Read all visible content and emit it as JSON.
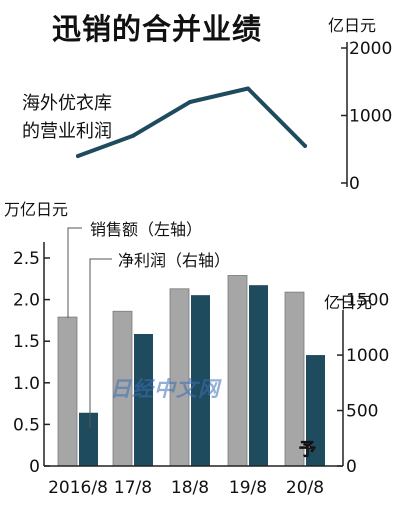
{
  "title": "迅销的合并业绩",
  "watermark": "日经中文网",
  "colors": {
    "sales": "#a6a6a6",
    "profit": "#1e4b5e",
    "line": "#1e4b5e",
    "axis": "#222222"
  },
  "chart_data": [
    {
      "type": "line",
      "title": "海外优衣库的营业利润",
      "title_lines": [
        "海外优衣库",
        "的营业利润"
      ],
      "ylabel": "亿日元",
      "ylim": [
        0,
        2000
      ],
      "yticks": [
        0,
        1000,
        2000
      ],
      "categories": [
        "2016/8",
        "17/8",
        "18/8",
        "19/8",
        "20/8"
      ],
      "values": [
        400,
        700,
        1200,
        1400,
        550
      ],
      "grid": false
    },
    {
      "type": "bar",
      "categories": [
        "2016/8",
        "17/8",
        "18/8",
        "19/8",
        "20/8"
      ],
      "series": [
        {
          "name": "销售额（左轴）",
          "axis": "left",
          "values": [
            1.79,
            1.86,
            2.13,
            2.29,
            2.09
          ]
        },
        {
          "name": "净利润（右轴）",
          "axis": "right",
          "values": [
            480,
            1190,
            1540,
            1630,
            1000
          ]
        }
      ],
      "ylabel_left": "万亿日元",
      "ylim_left": [
        0,
        2.5
      ],
      "yticks_left": [
        "0",
        "0.5",
        "1.0",
        "1.5",
        "2.0",
        "2.5"
      ],
      "ylabel_right": "亿日元",
      "ylim_right": [
        0,
        1875
      ],
      "yticks_right": [
        "0",
        "500",
        "1000",
        "1500"
      ],
      "annotation": "予",
      "grid": false
    }
  ]
}
